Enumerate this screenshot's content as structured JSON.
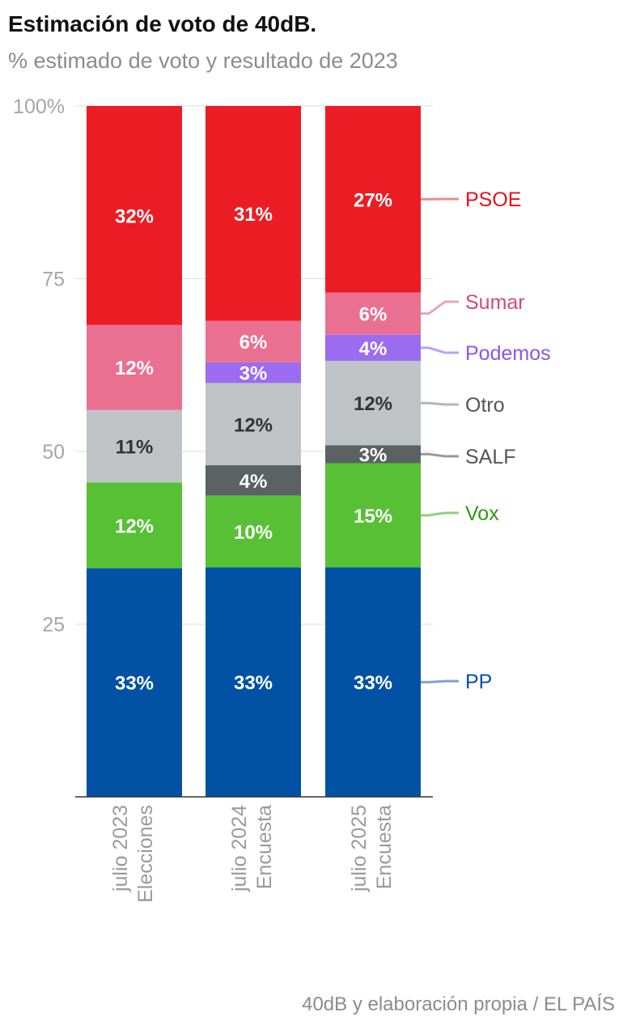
{
  "title": "Estimación de voto de 40dB.",
  "subtitle": "% estimado de voto y resultado de 2023",
  "source": "40dB y elaboración propia / EL PAÍS",
  "chart_data": {
    "type": "bar",
    "stacked": true,
    "ylim": [
      0,
      100
    ],
    "yticks": [
      {
        "value": 100,
        "label": "100%"
      },
      {
        "value": 75,
        "label": "75"
      },
      {
        "value": 50,
        "label": "50"
      },
      {
        "value": 25,
        "label": "25"
      }
    ],
    "grid": true,
    "legend_placement": "right",
    "categories": [
      {
        "line1": "julio 2023",
        "line2": "Elecciones"
      },
      {
        "line1": "julio 2024",
        "line2": "Encuesta"
      },
      {
        "line1": "julio 2025",
        "line2": "Encuesta"
      }
    ],
    "series": [
      {
        "name": "PP",
        "color": "#0152a5",
        "label_color": "#ffffff",
        "legend_color": "#0152a5",
        "leader_color": "#7aa3d0",
        "values": [
          33.1,
          33.2,
          33.2
        ],
        "labels": [
          "33%",
          "33%",
          "33%"
        ]
      },
      {
        "name": "Vox",
        "color": "#58c035",
        "label_color": "#ffffff",
        "legend_color": "#2e9a13",
        "leader_color": "#8fd27a",
        "values": [
          12.4,
          10.4,
          15.1
        ],
        "labels": [
          "12%",
          "10%",
          "15%"
        ]
      },
      {
        "name": "SALF",
        "color": "#5a6264",
        "label_color": "#ffffff",
        "legend_color": "#555555",
        "leader_color": "#999999",
        "values": [
          0,
          4.4,
          2.6
        ],
        "labels": [
          "",
          "4%",
          "3%"
        ]
      },
      {
        "name": "Otro",
        "color": "#bfc3c6",
        "label_color": "#333333",
        "legend_color": "#555555",
        "leader_color": "#b5b5b5",
        "values": [
          10.5,
          11.9,
          12.2
        ],
        "labels": [
          "11%",
          "12%",
          "12%"
        ]
      },
      {
        "name": "Podemos",
        "color": "#9b6cf0",
        "label_color": "#ffffff",
        "legend_color": "#8b55ee",
        "leader_color": "#bca0f4",
        "values": [
          0,
          3.0,
          3.8
        ],
        "labels": [
          "",
          "3%",
          "4%"
        ]
      },
      {
        "name": "Sumar",
        "color": "#ea7092",
        "label_color": "#ffffff",
        "legend_color": "#d44a72",
        "leader_color": "#e8a6b8",
        "values": [
          12.3,
          6.0,
          6.1
        ],
        "labels": [
          "12%",
          "6%",
          "6%"
        ]
      },
      {
        "name": "PSOE",
        "color": "#ec1c24",
        "label_color": "#ffffff",
        "legend_color": "#e6101b",
        "leader_color": "#ee8a8e",
        "values": [
          31.7,
          31.1,
          27.0
        ],
        "labels": [
          "32%",
          "31%",
          "27%"
        ]
      }
    ]
  }
}
